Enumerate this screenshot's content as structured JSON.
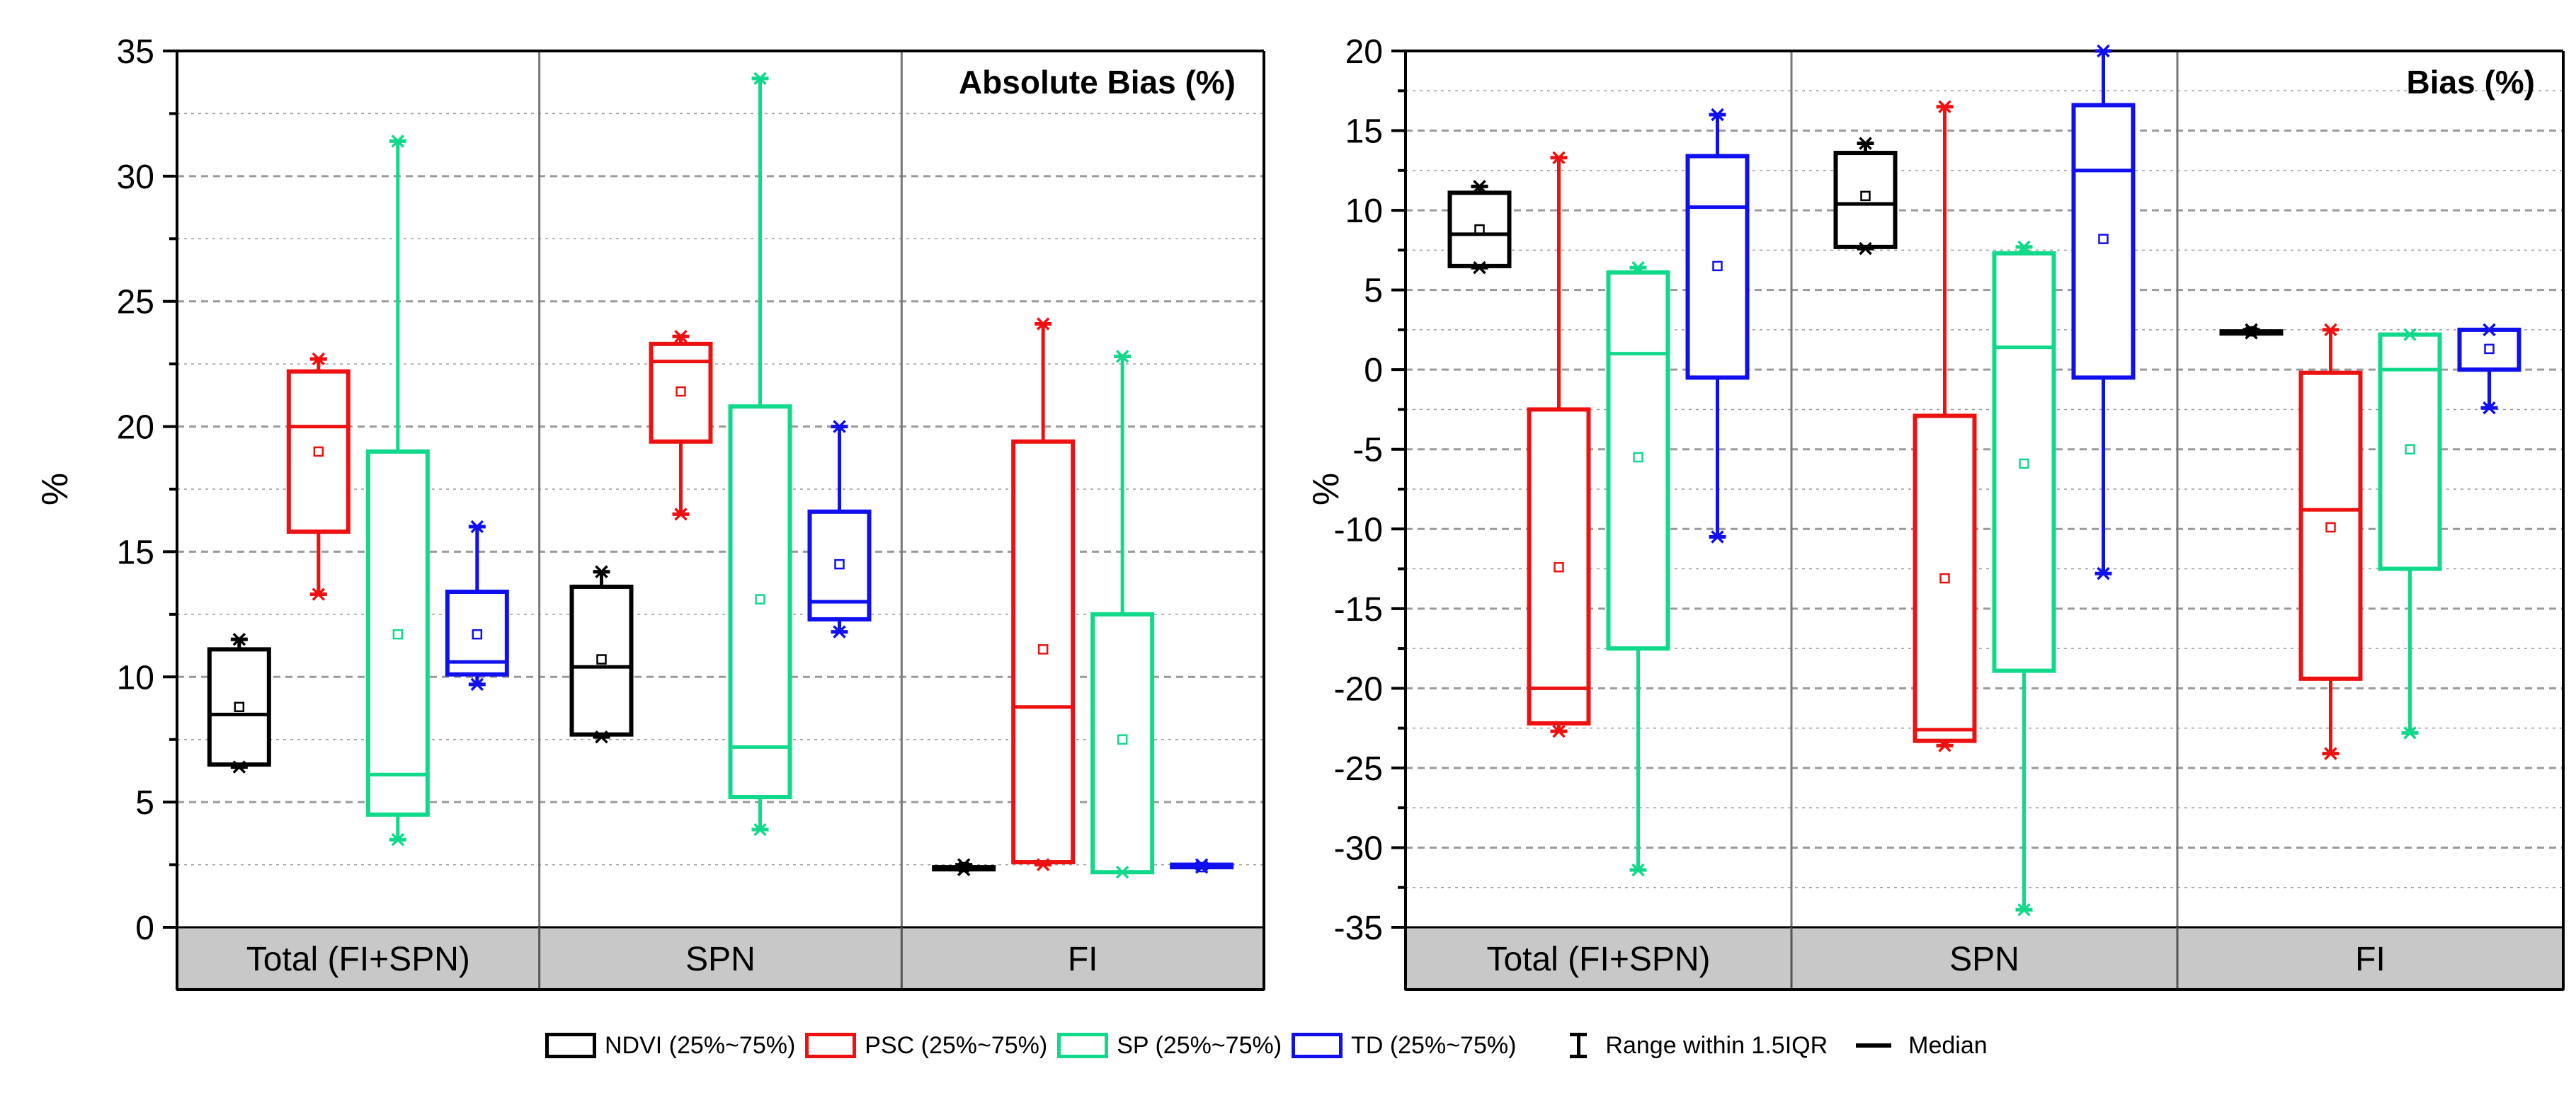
{
  "chart_data": [
    {
      "type": "box",
      "title": "Absolute Bias (%)",
      "ylabel": "%",
      "ylim": [
        0,
        35
      ],
      "yticks": [
        0,
        5,
        10,
        15,
        20,
        25,
        30,
        35
      ],
      "grid": true,
      "groups": [
        "Total (FI+SPN)",
        "SPN",
        "FI"
      ],
      "series": [
        {
          "name": "NDVI",
          "boxes": [
            {
              "q1": 6.5,
              "median": 8.5,
              "q3": 11.1,
              "min": 6.4,
              "max": 11.5,
              "mean": 8.8
            },
            {
              "q1": 7.7,
              "median": 10.4,
              "q3": 13.6,
              "min": 7.6,
              "max": 14.2,
              "mean": 10.7
            },
            {
              "q1": 2.4,
              "median": 2.4,
              "q3": 2.4,
              "min": 2.3,
              "max": 2.5,
              "mean": 2.4
            }
          ]
        },
        {
          "name": "PSC",
          "boxes": [
            {
              "q1": 15.8,
              "median": 20.0,
              "q3": 22.2,
              "min": 13.3,
              "max": 22.7,
              "mean": 19.0
            },
            {
              "q1": 19.4,
              "median": 22.6,
              "q3": 23.3,
              "min": 16.5,
              "max": 23.6,
              "mean": 21.4
            },
            {
              "q1": 2.6,
              "median": 8.8,
              "q3": 19.4,
              "min": 2.5,
              "max": 24.1,
              "mean": 11.1
            }
          ]
        },
        {
          "name": "SP",
          "boxes": [
            {
              "q1": 4.5,
              "median": 6.1,
              "q3": 19.0,
              "min": 3.5,
              "max": 31.4,
              "mean": 11.7
            },
            {
              "q1": 5.2,
              "median": 7.2,
              "q3": 20.8,
              "min": 3.9,
              "max": 33.9,
              "mean": 13.1
            },
            {
              "q1": 2.2,
              "median": 2.2,
              "q3": 12.5,
              "min": 2.2,
              "max": 22.8,
              "mean": 7.5
            }
          ]
        },
        {
          "name": "TD",
          "boxes": [
            {
              "q1": 10.1,
              "median": 10.6,
              "q3": 13.4,
              "min": 9.7,
              "max": 16.0,
              "mean": 11.7
            },
            {
              "q1": 12.3,
              "median": 13.0,
              "q3": 16.6,
              "min": 11.8,
              "max": 20.0,
              "mean": 14.5
            },
            {
              "q1": 2.4,
              "median": 2.4,
              "q3": 2.5,
              "min": 2.4,
              "max": 2.5,
              "mean": 2.4
            }
          ]
        }
      ]
    },
    {
      "type": "box",
      "title": "Bias (%)",
      "ylabel": "%",
      "ylim": [
        -35,
        20
      ],
      "yticks": [
        -35,
        -30,
        -25,
        -20,
        -15,
        -10,
        -5,
        0,
        5,
        10,
        15,
        20
      ],
      "grid": true,
      "groups": [
        "Total (FI+SPN)",
        "SPN",
        "FI"
      ],
      "series": [
        {
          "name": "NDVI",
          "boxes": [
            {
              "q1": 6.5,
              "median": 8.5,
              "q3": 11.1,
              "min": 6.4,
              "max": 11.5,
              "mean": 8.8
            },
            {
              "q1": 7.7,
              "median": 10.4,
              "q3": 13.6,
              "min": 7.6,
              "max": 14.2,
              "mean": 10.9
            },
            {
              "q1": 2.4,
              "median": 2.4,
              "q3": 2.4,
              "min": 2.3,
              "max": 2.5,
              "mean": 2.4
            }
          ]
        },
        {
          "name": "PSC",
          "boxes": [
            {
              "q1": -22.2,
              "median": -20.0,
              "q3": -2.5,
              "min": -22.7,
              "max": 13.3,
              "mean": -12.4
            },
            {
              "q1": -23.3,
              "median": -22.6,
              "q3": -2.9,
              "min": -23.6,
              "max": 16.5,
              "mean": -13.1
            },
            {
              "q1": -19.4,
              "median": -8.8,
              "q3": -0.2,
              "min": -24.1,
              "max": 2.5,
              "mean": -9.9
            }
          ]
        },
        {
          "name": "SP",
          "boxes": [
            {
              "q1": -17.5,
              "median": 1.0,
              "q3": 6.1,
              "min": -31.4,
              "max": 6.4,
              "mean": -5.5
            },
            {
              "q1": -18.9,
              "median": 1.4,
              "q3": 7.3,
              "min": -33.9,
              "max": 7.7,
              "mean": -5.9
            },
            {
              "q1": -12.5,
              "median": 0.0,
              "q3": 2.2,
              "min": -22.8,
              "max": 2.2,
              "mean": -5.0
            }
          ]
        },
        {
          "name": "TD",
          "boxes": [
            {
              "q1": -0.5,
              "median": 10.2,
              "q3": 13.4,
              "min": -10.5,
              "max": 16.0,
              "mean": 6.5
            },
            {
              "q1": -0.5,
              "median": 12.5,
              "q3": 16.6,
              "min": -12.8,
              "max": 20.0,
              "mean": 8.2
            },
            {
              "q1": 0.0,
              "median": 2.5,
              "q3": 2.5,
              "min": -2.4,
              "max": 2.5,
              "mean": 1.3
            }
          ]
        }
      ]
    }
  ],
  "colors": {
    "NDVI": "#000000",
    "PSC": "#ee1111",
    "SP": "#11d98a",
    "TD": "#1010ee",
    "grid": "#9a9a9a",
    "group_band": "#c8c8c8"
  },
  "legend": {
    "items": [
      {
        "key": "NDVI",
        "label": "NDVI (25%~75%)"
      },
      {
        "key": "PSC",
        "label": "PSC (25%~75%)"
      },
      {
        "key": "SP",
        "label": "SP (25%~75%)"
      },
      {
        "key": "TD",
        "label": "TD (25%~75%)"
      }
    ],
    "range_label": "Range within 1.5IQR",
    "median_label": "Median"
  }
}
